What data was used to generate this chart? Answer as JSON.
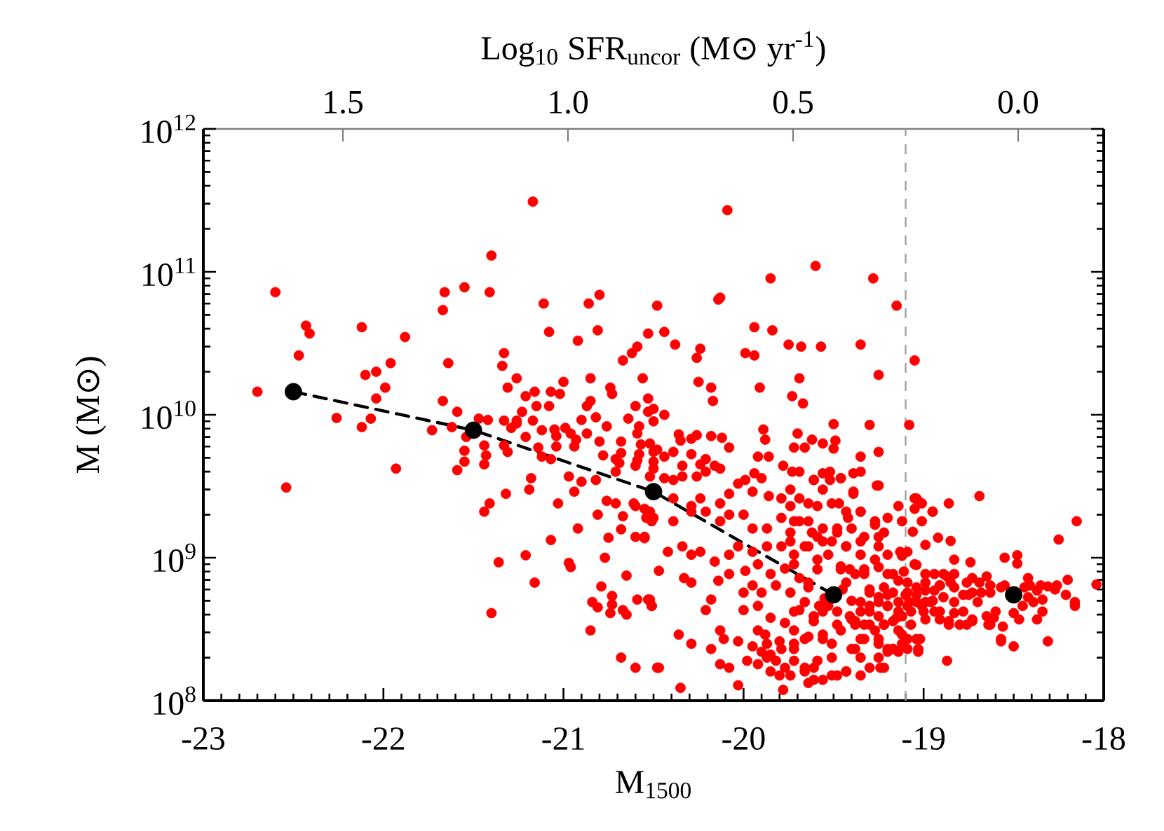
{
  "chart_data": {
    "type": "scatter",
    "xlabel": "M$_{1500}$",
    "ylabel": "M (M⊙)",
    "x2label": "Log$_{10}$ SFR$_{uncor}$ (M⊙ yr$^{-1}$)",
    "xlim": [
      -23,
      -18
    ],
    "xticks": [
      -23,
      -22,
      -21,
      -20,
      -19,
      -18
    ],
    "ylim": [
      100000000.0,
      1000000000000.0
    ],
    "yticks": [
      {
        "value": 100000000.0,
        "label": "10$^{8}$"
      },
      {
        "value": 1000000000.0,
        "label": "10$^{9}$"
      },
      {
        "value": 10000000000.0,
        "label": "10$^{10}$"
      },
      {
        "value": 100000000000.0,
        "label": "10$^{11}$"
      },
      {
        "value": 1000000000000.0,
        "label": "10$^{12}$"
      }
    ],
    "x2lim": [
      1.81,
      -0.19
    ],
    "x2ticks": [
      1.5,
      {
        "value": 1,
        "label": "1.0"
      },
      0.5,
      {
        "value": 0,
        "label": "0.0"
      }
    ],
    "log": "y",
    "grid": false,
    "ref_lines": [
      {
        "axis": "x",
        "value": -19.1,
        "color": "#a0a0a0",
        "line_style": "dashed"
      }
    ],
    "series": [
      {
        "type": "line",
        "x": [
          -22.5,
          -21.5,
          -20.5,
          -19.5
        ],
        "values": [
          14500000000.0,
          7800000000.0,
          2900000000.0,
          550000000.0
        ],
        "color": "#000000",
        "line_style": "dashed",
        "marker": "none"
      },
      {
        "color": "#ff0000",
        "marker": "circle",
        "x": [
          -21.17,
          -21.4,
          -22.6,
          -21.66,
          -21.55,
          -21.41,
          -21.67,
          -21.11,
          -20.86,
          -20.8,
          -20.48,
          -22.43,
          -22.41,
          -22.12,
          -21.88,
          -21.08,
          -20.81,
          -20.53,
          -22.47,
          -21.33,
          -20.92,
          -20.59,
          -20.62,
          -20.67,
          -21.96,
          -21.64,
          -21.34,
          -22.1,
          -22.04,
          -21.26,
          -20.85,
          -20.56,
          -21.0,
          -22.7,
          -21.99,
          -21.31,
          -20.74,
          -20.73,
          -21.21,
          -21.16,
          -21.07,
          -21.02,
          -22.04,
          -20.53,
          -21.67,
          -20.85,
          -20.87,
          -20.6,
          -20.5,
          -21.59,
          -21.15,
          -21.08,
          -22.26,
          -22.07,
          -21.47,
          -21.42,
          -21.33,
          -21.26,
          -21.17,
          -20.9,
          -20.82,
          -20.64,
          -21.23,
          -20.09,
          -19.6,
          -19.85,
          -19.28,
          -19.15,
          -20.14,
          -20.13,
          -20.44,
          -19.94,
          -19.84,
          -20.38,
          -20.24,
          -20.26,
          -19.99,
          -19.94,
          -19.75,
          -19.68,
          -19.57,
          -19.35,
          -19.05,
          -19.25,
          -20.25,
          -20.18,
          -19.91,
          -19.69,
          -20.17,
          -19.73,
          -19.67,
          -20.44,
          -19.5,
          -19.08,
          -19.3,
          -22.54,
          -21.93,
          -22.12,
          -21.73,
          -21.62,
          -21.54,
          -21.55,
          -21.55,
          -21.59,
          -21.44,
          -21.43,
          -21.44,
          -21.33,
          -21.31,
          -21.41,
          -21.44,
          -21.32,
          -21.36,
          -21.4,
          -21.21,
          -21.16,
          -21.19,
          -21.18,
          -21.21,
          -21.26,
          -21.29,
          -21.12,
          -21.12,
          -21.14,
          -21.05,
          -21.04,
          -21.04,
          -21.07,
          -21.07,
          -21.03,
          -20.99,
          -20.96,
          -20.93,
          -20.94,
          -20.87,
          -20.97,
          -20.94,
          -20.9,
          -20.92,
          -20.97,
          -20.96,
          -20.8,
          -20.76,
          -20.82,
          -20.78,
          -20.76,
          -20.81,
          -20.75,
          -20.77,
          -20.79,
          -20.84,
          -20.81,
          -20.73,
          -20.73,
          -20.74,
          -20.85,
          -20.68,
          -20.68,
          -20.69,
          -20.71,
          -20.71,
          -20.71,
          -20.67,
          -20.68,
          -20.65,
          -20.67,
          -20.65,
          -20.68,
          -20.6,
          -20.48,
          -20.59,
          -20.52,
          -20.51,
          -20.6,
          -20.55,
          -20.61,
          -20.6,
          -20.55,
          -20.52,
          -20.54,
          -20.51,
          -20.6,
          -20.59,
          -20.58,
          -20.57,
          -20.59,
          -20.58,
          -20.52,
          -20.5,
          -20.52,
          -20.48,
          -20.53,
          -20.5,
          -19.89,
          -20.36,
          -20.35,
          -20.29,
          -20.26,
          -20.18,
          -20.12,
          -20.08,
          -19.88,
          -19.7,
          -19.62,
          -19.56,
          -19.49,
          -19.5,
          -19.66,
          -19.72,
          -19.35,
          -19.25,
          -19.92,
          -19.86,
          -19.78,
          -20.29,
          -20.21,
          -20.16,
          -20.24,
          -20.44,
          -20.39,
          -20.34,
          -20.5,
          -20.5,
          -20.44,
          -20.39,
          -20.34,
          -20.26,
          -20.21,
          -20.13,
          -20.03,
          -19.99,
          -19.94,
          -19.9,
          -19.95,
          -19.86,
          -19.79,
          -19.74,
          -19.69,
          -19.61,
          -19.56,
          -19.52,
          -19.46,
          -19.39,
          -19.39,
          -19.26,
          -19.47,
          -19.64,
          -20.08,
          -20.13,
          -20.24,
          -20.29,
          -20.39,
          -20.5,
          -20.39,
          -20.29,
          -20.21,
          -20.13,
          -20.08,
          -20.0,
          -19.95,
          -19.87,
          -19.79,
          -19.74,
          -19.69,
          -19.62,
          -19.56,
          -19.48,
          -19.42,
          -19.35,
          -19.27,
          -19.2,
          -19.12,
          -19.05,
          -19.03,
          -18.95,
          -18.86,
          -18.69,
          -19.14,
          -19.25,
          -19.35,
          -19.43,
          -20.55,
          -20.47,
          -20.42,
          -20.34,
          -20.29,
          -20.24,
          -20.16,
          -20.08,
          -20.03,
          -19.95,
          -19.87,
          -19.79,
          -19.72,
          -19.64,
          -19.59,
          -19.53,
          -19.46,
          -20.53,
          -20.51,
          -20.33,
          -20.29,
          -20.14,
          -20.08,
          -19.99,
          -19.92,
          -19.85,
          -19.77,
          -19.69,
          -19.64,
          -19.82,
          -19.9,
          -19.95,
          -20.0,
          -20.18,
          -20.21,
          -20.0,
          -19.92,
          -19.85,
          -19.77,
          -19.69,
          -19.61,
          -19.53,
          -19.48,
          -19.4,
          -20.13,
          -20.36,
          -20.29,
          -20.18,
          -20.11,
          -20.03,
          -19.92,
          -19.87,
          -19.79,
          -19.72,
          -19.64,
          -19.56,
          -20.47,
          -20.13,
          -20.08,
          -19.98,
          -19.87,
          -19.82,
          -19.77,
          -19.72,
          -19.66,
          -19.61,
          -19.56,
          -19.48,
          -19.64,
          -20.03,
          -20.35,
          -19.78,
          -18.15,
          -18.25,
          -19.06,
          -18.99,
          -18.92,
          -18.85,
          -18.83,
          -18.55,
          -18.48,
          -18.48,
          -19.05,
          -19.12,
          -19.11,
          -18.2,
          -18.04,
          -18.16,
          -18.31,
          -18.27,
          -18.34,
          -18.37,
          -18.31,
          -18.5,
          -18.57,
          -18.47,
          -18.5,
          -18.61,
          -18.64,
          -18.73,
          -18.76,
          -18.8,
          -18.42,
          -18.41,
          -18.37,
          -18.42,
          -18.45,
          -18.73,
          -18.69,
          -18.63,
          -18.57,
          -18.68,
          -18.73,
          -18.78,
          -18.76,
          -18.83,
          -18.85,
          -18.89,
          -18.91,
          -19.05,
          -19.41,
          -19.33,
          -19.25,
          -19.2,
          -19.14,
          -19.09,
          -19.04,
          -18.99,
          -18.94,
          -18.89,
          -18.83,
          -18.99,
          -19.04,
          -19.09,
          -19.14,
          -19.2,
          -19.25,
          -19.3,
          -19.35,
          -19.41,
          -19.38,
          -19.3,
          -19.22,
          -19.14,
          -19.07,
          -18.99,
          -18.91,
          -18.83,
          -18.94,
          -18.86,
          -19.33,
          -19.25,
          -19.17,
          -19.09,
          -19.02,
          -19.38,
          -19.25,
          -19.2,
          -19.09,
          -19.03,
          -18.87,
          -19.24,
          -19.35,
          -19.43,
          -19.45,
          -19.4,
          -19.55,
          -19.58,
          -19.3,
          -19.2,
          -19.1,
          -18.95,
          -19.15,
          -19.0,
          -19.04,
          -19.01,
          -18.95,
          -19.01,
          -19.13,
          -19.09,
          -19.04,
          -18.99,
          -18.94,
          -18.87,
          -18.74,
          -18.65,
          -18.35,
          -18.26,
          -18.16,
          -18.21,
          -18.34,
          -18.39,
          -18.44,
          -18.55,
          -18.63,
          -18.7,
          -18.75,
          -18.83,
          -18.91,
          -18.99,
          -19.04,
          -19.08,
          -19.01,
          -18.96,
          -18.91,
          -18.86,
          -18.78,
          -18.73,
          -18.65,
          -18.6,
          -18.63,
          -18.57,
          -18.56,
          -19.09,
          -19.07,
          -19.04,
          -19.03,
          -19.12,
          -19.35,
          -19.3,
          -19.25,
          -19.2,
          -19.14,
          -19.33,
          -19.27,
          -19.22,
          -19.17,
          -19.12,
          -19.25,
          -19.17,
          -19.38,
          -19.3,
          -19.22,
          -19.35,
          -19.25,
          -19.2,
          -19.14,
          -19.12,
          -19.73,
          -19.61,
          -19.56,
          -19.52,
          -19.46,
          -19.35,
          -19.25,
          -19.39,
          -19.74,
          -19.69,
          -19.59,
          -19.51,
          -19.43,
          -19.35,
          -19.27,
          -19.22,
          -19.72,
          -19.64,
          -19.56,
          -19.48,
          -19.4,
          -19.33,
          -19.25,
          -19.2,
          -19.74,
          -19.66,
          -19.59,
          -19.51,
          -19.43,
          -19.35,
          -19.27,
          -19.17,
          -19.72,
          -19.72,
          -19.74,
          -19.64,
          -19.59,
          -19.46,
          -19.43,
          -19.38,
          -19.33,
          -19.66,
          -19.61,
          -19.72,
          -19.66,
          -19.56,
          -19.51,
          -19.46,
          -19.4,
          -19.51,
          -19.59,
          -19.66,
          -19.74,
          -19.61,
          -19.51,
          -19.43,
          -19.35,
          -19.3,
          -19.22,
          -19.17,
          -19.72,
          -19.56,
          -19.48,
          -19.9,
          -19.85,
          -19.8,
          -19.95,
          -19.85,
          -19.92,
          -19.8,
          -19.88
        ],
        "values": [
          310000000000.0,
          130000000000.0,
          72000000000.0,
          72000000000.0,
          78000000000.0,
          72000000000.0,
          54000000000.0,
          60000000000.0,
          60000000000.0,
          69000000000.0,
          58000000000.0,
          42000000000.0,
          37000000000.0,
          41000000000.0,
          35000000000.0,
          38000000000.0,
          39000000000.0,
          37000000000.0,
          26000000000.0,
          27000000000.0,
          33000000000.0,
          30000000000.0,
          27000000000.0,
          24000000000.0,
          23000000000.0,
          23000000000.0,
          22000000000.0,
          19000000000.0,
          20000000000.0,
          18000000000.0,
          18000000000.0,
          18000000000.0,
          17000000000.0,
          14500000000.0,
          15500000000.0,
          15500000000.0,
          15500000000.0,
          14000000000.0,
          13500000000.0,
          14500000000.0,
          14500000000.0,
          14000000000.0,
          13000000000.0,
          13000000000.0,
          12500000000.0,
          12500000000.0,
          11500000000.0,
          11500000000.0,
          11000000000.0,
          10500000000.0,
          11500000000.0,
          11500000000.0,
          9500000000.0,
          9400000000.0,
          9400000000.0,
          9200000000.0,
          9100000000.0,
          9100000000.0,
          9100000000.0,
          9200000000.0,
          9600000000.0,
          9400000000.0,
          10500000000.0,
          270000000000.0,
          110000000000.0,
          90000000000.0,
          90000000000.0,
          58000000000.0,
          64000000000.0,
          66000000000.0,
          38000000000.0,
          41000000000.0,
          39000000000.0,
          31000000000.0,
          29000000000.0,
          25000000000.0,
          27000000000.0,
          26000000000.0,
          31000000000.0,
          30000000000.0,
          30000000000.0,
          31000000000.0,
          24000000000.0,
          19000000000.0,
          17000000000.0,
          15500000000.0,
          15500000000.0,
          18000000000.0,
          12500000000.0,
          13500000000.0,
          12000000000.0,
          10000000000.0,
          8600000000.0,
          8500000000.0,
          8500000000.0,
          3100000000.0,
          4200000000.0,
          8200000000.0,
          7800000000.0,
          8200000000.0,
          7000000000.0,
          5600000000.0,
          4700000000.0,
          4100000000.0,
          6100000000.0,
          5200000000.0,
          4500000000.0,
          6100000000.0,
          5500000000.0,
          2400000000.0,
          2100000000.0,
          2800000000.0,
          930000000.0,
          410000000.0,
          1040000000.0,
          670000000.0,
          3000000000.0,
          3600000000.0,
          7000000000.0,
          8700000000.0,
          8100000000.0,
          7800000000.0,
          5100000000.0,
          5900000000.0,
          7900000000.0,
          7100000000.0,
          6000000000.0,
          4900000000.0,
          1330000000.0,
          2400000000.0,
          8100000000.0,
          7400000000.0,
          6700000000.0,
          6000000000.0,
          7400000000.0,
          3700000000.0,
          2900000000.0,
          3400000000.0,
          1600000000.0,
          920000000.0,
          860000000.0,
          6500000000.0,
          8300000000.0,
          3500000000.0,
          5200000000.0,
          2500000000.0,
          2000000000.0,
          1380000000.0,
          1000000000.0,
          630000000.0,
          490000000.0,
          450000000.0,
          540000000.0,
          470000000.0,
          410000000.0,
          310000000.0,
          6500000000.0,
          5400000000.0,
          4600000000.0,
          4900000000.0,
          4000000000.0,
          2400000000.0,
          1950000000.0,
          1580000000.0,
          750000000.0,
          430000000.0,
          400000000.0,
          200000000.0,
          170000000.0,
          170000000.0,
          510000000.0,
          510000000.0,
          460000000.0,
          1400000000.0,
          1370000000.0,
          2400000000.0,
          2300000000.0,
          2200000000.0,
          2100000000.0,
          1900000000.0,
          1800000000.0,
          4400000000.0,
          4800000000.0,
          5300000000.0,
          6200000000.0,
          7400000000.0,
          8300000000.0,
          6300000000.0,
          4700000000.0,
          3700000000.0,
          5700000000.0,
          10500000000.0,
          9000000000.0,
          7900000000.0,
          7300000000.0,
          6600000000.0,
          6800000000.0,
          7200000000.0,
          7100000000.0,
          6900000000.0,
          5900000000.0,
          6700000000.0,
          7400000000.0,
          6700000000.0,
          6300000000.0,
          6600000000.0,
          5800000000.0,
          5900000000.0,
          5900000000.0,
          5100000000.0,
          5500000000.0,
          5100000000.0,
          5100000000.0,
          4400000000.0,
          5300000000.0,
          4900000000.0,
          4400000000.0,
          4500000000.0,
          5100000000.0,
          5500000000.0,
          4400000000.0,
          5500000000.0,
          4200000000.0,
          3600000000.0,
          3500000000.0,
          3700000000.0,
          3700000000.0,
          4000000000.0,
          4200000000.0,
          3300000000.0,
          3500000000.0,
          3900000000.0,
          3600000000.0,
          2900000000.0,
          2700000000.0,
          2600000000.0,
          3000000000.0,
          4000000000.0,
          3500000000.0,
          3000000000.0,
          4000000000.0,
          3600000000.0,
          3900000000.0,
          2800000000.0,
          3200000000.0,
          2400000000.0,
          2400000000.0,
          2800000000.0,
          2400000000.0,
          2600000000.0,
          2300000000.0,
          2600000000.0,
          1900000000.0,
          1800000000.0,
          2100000000.0,
          2100000000.0,
          1800000000.0,
          2000000000.0,
          2000000000.0,
          1600000000.0,
          1600000000.0,
          1900000000.0,
          1500000000.0,
          1800000000.0,
          1500000000.0,
          1300000000.0,
          1600000000.0,
          1900000000.0,
          2100000000.0,
          1700000000.0,
          1900000000.0,
          1800000000.0,
          2200000000.0,
          2500000000.0,
          2100000000.0,
          2400000000.0,
          2700000000.0,
          2300000000.0,
          1400000000.0,
          1300000000.0,
          1200000000.0,
          1400000000.0,
          810000000.0,
          1100000000.0,
          1200000000.0,
          1050000000.0,
          1100000000.0,
          940000000.0,
          1050000000.0,
          1200000000.0,
          1100000000.0,
          1200000000.0,
          1200000000.0,
          1050000000.0,
          1200000000.0,
          970000000.0,
          1050000000.0,
          870000000.0,
          510000000.0,
          460000000.0,
          720000000.0,
          670000000.0,
          690000000.0,
          770000000.0,
          810000000.0,
          900000000.0,
          770000000.0,
          840000000.0,
          720000000.0,
          620000000.0,
          640000000.0,
          570000000.0,
          640000000.0,
          570000000.0,
          510000000.0,
          430000000.0,
          430000000.0,
          460000000.0,
          380000000.0,
          350000000.0,
          430000000.0,
          390000000.0,
          460000000.0,
          340000000.0,
          370000000.0,
          310000000.0,
          290000000.0,
          250000000.0,
          230000000.0,
          270000000.0,
          260000000.0,
          310000000.0,
          250000000.0,
          230000000.0,
          250000000.0,
          280000000.0,
          270000000.0,
          170000000.0,
          180000000.0,
          170000000.0,
          190000000.0,
          200000000.0,
          190000000.0,
          170000000.0,
          190000000.0,
          160000000.0,
          170000000.0,
          140000000.0,
          150000000.0,
          133000000.0,
          128000000.0,
          123000000.0,
          119000000.0,
          1800000000.0,
          1340000000.0,
          1520000000.0,
          1230000000.0,
          1380000000.0,
          1310000000.0,
          970000000.0,
          1000000000.0,
          1040000000.0,
          910000000.0,
          900000000.0,
          1030000000.0,
          800000000.0,
          700000000.0,
          650000000.0,
          460000000.0,
          630000000.0,
          600000000.0,
          420000000.0,
          370000000.0,
          260000000.0,
          240000000.0,
          260000000.0,
          370000000.0,
          410000000.0,
          380000000.0,
          340000000.0,
          370000000.0,
          340000000.0,
          340000000.0,
          720000000.0,
          640000000.0,
          590000000.0,
          530000000.0,
          460000000.0,
          720000000.0,
          670000000.0,
          640000000.0,
          620000000.0,
          570000000.0,
          570000000.0,
          550000000.0,
          670000000.0,
          770000000.0,
          670000000.0,
          770000000.0,
          640000000.0,
          2600000000.0,
          830000000.0,
          770000000.0,
          860000000.0,
          770000000.0,
          690000000.0,
          670000000.0,
          620000000.0,
          670000000.0,
          590000000.0,
          530000000.0,
          490000000.0,
          490000000.0,
          490000000.0,
          460000000.0,
          420000000.0,
          460000000.0,
          490000000.0,
          460000000.0,
          420000000.0,
          390000000.0,
          340000000.0,
          340000000.0,
          340000000.0,
          310000000.0,
          340000000.0,
          370000000.0,
          370000000.0,
          410000000.0,
          420000000.0,
          340000000.0,
          270000000.0,
          250000000.0,
          230000000.0,
          270000000.0,
          270000000.0,
          230000000.0,
          200000000.0,
          220000000.0,
          230000000.0,
          220000000.0,
          190000000.0,
          170000000.0,
          150000000.0,
          160000000.0,
          600000000.0,
          500000000.0,
          520000000.0,
          460000000.0,
          600000000.0,
          550000000.0,
          550000000.0,
          500000000.0,
          380000000.0,
          420000000.0,
          2600000000.0,
          2400000000.0,
          2100000000.0,
          1800000000.0,
          1100000000.0,
          1100000000.0,
          890000000.0,
          770000000.0,
          770000000.0,
          740000000.0,
          930000000.0,
          740000000.0,
          640000000.0,
          640000000.0,
          490000000.0,
          550000000.0,
          510000000.0,
          490000000.0,
          620000000.0,
          640000000.0,
          570000000.0,
          490000000.0,
          550000000.0,
          620000000.0,
          640000000.0,
          590000000.0,
          550000000.0,
          490000000.0,
          460000000.0,
          490000000.0,
          420000000.0,
          360000000.0,
          420000000.0,
          360000000.0,
          390000000.0,
          420000000.0,
          340000000.0,
          270000000.0,
          330000000.0,
          570000000.0,
          420000000.0,
          270000000.0,
          230000000.0,
          250000000.0,
          490000000.0,
          420000000.0,
          390000000.0,
          460000000.0,
          490000000.0,
          340000000.0,
          310000000.0,
          340000000.0,
          360000000.0,
          390000000.0,
          530000000.0,
          570000000.0,
          360000000.0,
          570000000.0,
          620000000.0,
          270000000.0,
          270000000.0,
          230000000.0,
          220000000.0,
          290000000.0,
          4000000000.0,
          3500000000.0,
          3900000000.0,
          3500000000.0,
          3600000000.0,
          4000000000.0,
          3200000000.0,
          2900000000.0,
          2300000000.0,
          2600000000.0,
          2300000000.0,
          2400000000.0,
          2100000000.0,
          2100000000.0,
          1800000000.0,
          1500000000.0,
          1800000000.0,
          1800000000.0,
          1600000000.0,
          1500000000.0,
          1600000000.0,
          1400000000.0,
          1200000000.0,
          1050000000.0,
          1300000000.0,
          1200000000.0,
          1400000000.0,
          1300000000.0,
          1200000000.0,
          1050000000.0,
          970000000.0,
          770000000.0,
          900000000.0,
          420000000.0,
          570000000.0,
          670000000.0,
          830000000.0,
          830000000.0,
          670000000.0,
          770000000.0,
          830000000.0,
          490000000.0,
          360000000.0,
          310000000.0,
          270000000.0,
          290000000.0,
          250000000.0,
          310000000.0,
          230000000.0,
          200000000.0,
          190000000.0,
          170000000.0,
          150000000.0,
          140000000.0,
          150000000.0,
          160000000.0,
          200000000.0,
          170000000.0,
          170000000.0,
          230000000.0,
          230000000.0,
          420000000.0,
          420000000.0,
          220000000.0,
          210000000.0,
          260000000.0,
          240000000.0,
          160000000.0,
          180000000.0,
          150000000.0,
          290000000.0
        ]
      },
      {
        "x": [
          -22.5,
          -21.5,
          -20.5,
          -19.5,
          -18.5
        ],
        "values": [
          14500000000.0,
          7800000000.0,
          2900000000.0,
          550000000.0,
          550000000.0
        ],
        "color": "#000000",
        "marker": "circle"
      }
    ]
  }
}
